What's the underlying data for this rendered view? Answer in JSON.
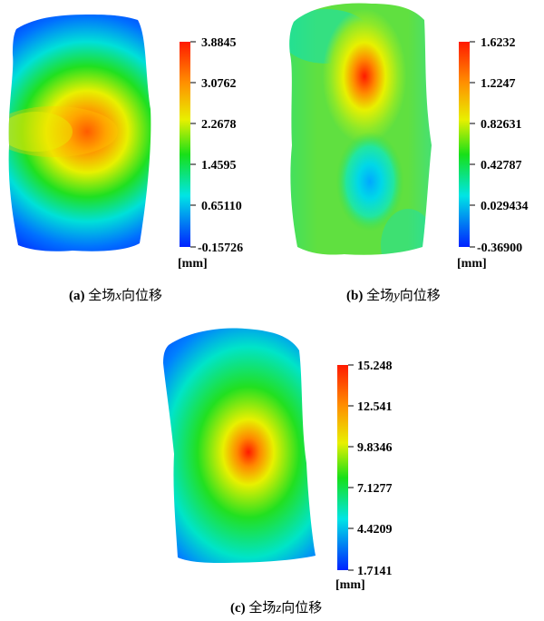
{
  "palette": {
    "blue": "#0022ff",
    "cyan": "#00e5e5",
    "green": "#18e018",
    "yellow": "#e8f000",
    "orange": "#ff9000",
    "red": "#ff1a00"
  },
  "panels": [
    {
      "id": "a",
      "caption_label": "(a)",
      "caption_prefix": "全场",
      "caption_axis": "x",
      "caption_suffix": "向位移",
      "unit": "[mm]",
      "ticks": [
        "3.8845",
        "3.0762",
        "2.2678",
        "1.4595",
        "0.65110",
        "-0.15726"
      ]
    },
    {
      "id": "b",
      "caption_label": "(b)",
      "caption_prefix": "全场",
      "caption_axis": "y",
      "caption_suffix": "向位移",
      "unit": "[mm]",
      "ticks": [
        "1.6232",
        "1.2247",
        "0.82631",
        "0.42787",
        "0.029434",
        "-0.36900"
      ]
    },
    {
      "id": "c",
      "caption_label": "(c)",
      "caption_prefix": "全场",
      "caption_axis": "z",
      "caption_suffix": "向位移",
      "unit": "[mm]",
      "ticks": [
        "15.248",
        "12.541",
        "9.8346",
        "7.1277",
        "4.4209",
        "1.7141"
      ]
    }
  ]
}
